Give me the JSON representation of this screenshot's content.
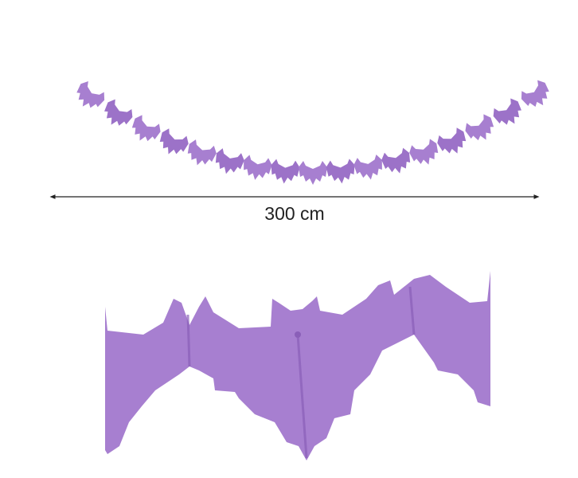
{
  "dimension": {
    "label": "300 cm"
  }
}
